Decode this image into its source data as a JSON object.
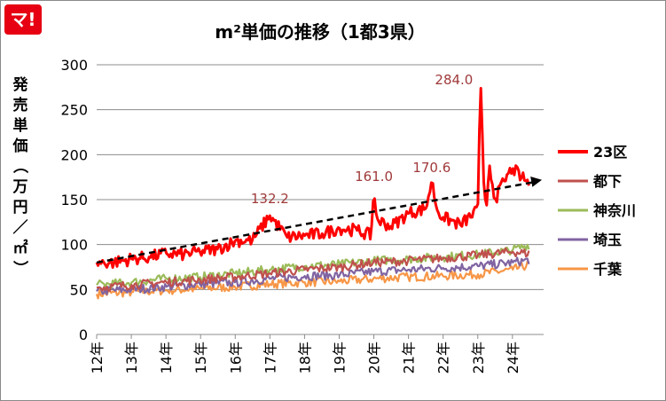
{
  "logo": {
    "text": "マ!",
    "color": "#e60012"
  },
  "chart_data": {
    "type": "line",
    "title": "m²単価の推移（1都3県）",
    "ylabel": "発売単価（万円／㎡）",
    "xlabel": "",
    "ylim": [
      0,
      300
    ],
    "yticks": [
      0,
      50,
      100,
      150,
      200,
      250,
      300
    ],
    "x_tick_labels": [
      "12年",
      "13年",
      "14年",
      "15年",
      "16年",
      "17年",
      "18年",
      "19年",
      "20年",
      "21年",
      "22年",
      "23年",
      "24年"
    ],
    "x_range_years": [
      2012,
      2024.9
    ],
    "grid": true,
    "legend_position": "right",
    "series": [
      {
        "name": "23区",
        "color": "#ff0000",
        "x": [
          2012.0,
          2012.5,
          2013.0,
          2013.5,
          2014.0,
          2014.5,
          2015.0,
          2015.5,
          2016.0,
          2016.5,
          2017.0,
          2017.5,
          2018.0,
          2018.5,
          2019.0,
          2019.5,
          2019.92,
          2020.0,
          2020.08,
          2020.5,
          2021.0,
          2021.5,
          2021.67,
          2021.83,
          2022.0,
          2022.5,
          2023.0,
          2023.08,
          2023.17,
          2023.25,
          2023.33,
          2023.5,
          2023.75,
          2024.0,
          2024.25,
          2024.5
        ],
        "values": [
          80,
          80,
          84,
          86,
          90,
          89,
          92,
          95,
          104,
          105,
          132.2,
          108,
          110,
          112,
          118,
          116,
          110,
          161,
          128,
          120,
          135,
          140,
          170.6,
          138,
          130,
          122,
          138,
          284,
          170,
          140,
          190,
          150,
          170,
          185,
          175,
          168
        ]
      },
      {
        "name": "都下",
        "color": "#c0504d",
        "x": [
          2012.0,
          2013.0,
          2014.0,
          2015.0,
          2016.0,
          2017.0,
          2018.0,
          2019.0,
          2020.0,
          2021.0,
          2022.0,
          2023.0,
          2024.0,
          2024.5
        ],
        "values": [
          52,
          55,
          58,
          61,
          64,
          68,
          72,
          75,
          80,
          82,
          85,
          88,
          92,
          90
        ]
      },
      {
        "name": "神奈川",
        "color": "#9bbb59",
        "x": [
          2012.0,
          2013.0,
          2014.0,
          2015.0,
          2016.0,
          2017.0,
          2018.0,
          2019.0,
          2020.0,
          2021.0,
          2022.0,
          2023.0,
          2024.0,
          2024.5
        ],
        "values": [
          55,
          58,
          62,
          64,
          68,
          72,
          76,
          78,
          82,
          84,
          86,
          89,
          94,
          100
        ]
      },
      {
        "name": "埼玉",
        "color": "#8064a2",
        "x": [
          2012.0,
          2013.0,
          2014.0,
          2015.0,
          2016.0,
          2017.0,
          2018.0,
          2019.0,
          2020.0,
          2021.0,
          2022.0,
          2023.0,
          2024.0,
          2024.5
        ],
        "values": [
          48,
          50,
          53,
          56,
          58,
          62,
          65,
          66,
          70,
          72,
          74,
          76,
          80,
          83
        ]
      },
      {
        "name": "千葉",
        "color": "#f79646",
        "x": [
          2012.0,
          2013.0,
          2014.0,
          2015.0,
          2016.0,
          2017.0,
          2018.0,
          2019.0,
          2020.0,
          2021.0,
          2022.0,
          2023.0,
          2024.0,
          2024.5
        ],
        "values": [
          45,
          47,
          49,
          51,
          53,
          56,
          58,
          59,
          62,
          64,
          65,
          67,
          72,
          78
        ]
      }
    ],
    "trend": {
      "x": [
        2012.0,
        2024.85
      ],
      "values": [
        80,
        172
      ],
      "color": "#000000",
      "style": "dashed-arrow"
    },
    "annotations": [
      {
        "text": "132.2",
        "x": 2017.0,
        "y": 132.2
      },
      {
        "text": "161.0",
        "x": 2020.0,
        "y": 161.0
      },
      {
        "text": "170.6",
        "x": 2021.67,
        "y": 170.6
      },
      {
        "text": "284.0",
        "x": 2023.08,
        "y": 284.0
      }
    ]
  }
}
